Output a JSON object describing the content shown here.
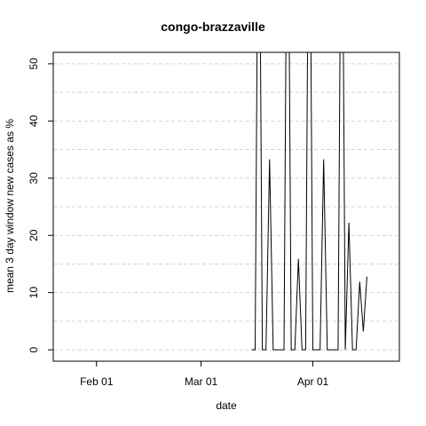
{
  "chart_data": {
    "type": "line",
    "title": "congo-brazzaville",
    "xlabel": "date",
    "ylabel": "mean  3  day window new cases as %",
    "x_ticks": [
      "Feb 01",
      "Mar 01",
      "Apr 01"
    ],
    "x_tick_dates": [
      "2020-02-01",
      "2020-03-01",
      "2020-04-01"
    ],
    "y_ticks": [
      0,
      10,
      20,
      30,
      40,
      50
    ],
    "xlim": [
      "2020-01-20",
      "2020-04-25"
    ],
    "ylim": [
      -2,
      52
    ],
    "grid": "horizontal dashed",
    "series": [
      {
        "x": [
          "2020-03-15",
          "2020-03-16",
          "2020-03-17",
          "2020-03-18",
          "2020-03-19",
          "2020-03-20",
          "2020-03-21",
          "2020-03-22",
          "2020-03-23",
          "2020-03-24",
          "2020-03-25",
          "2020-03-26",
          "2020-03-27",
          "2020-03-28",
          "2020-03-29",
          "2020-03-30",
          "2020-03-31",
          "2020-04-01",
          "2020-04-02",
          "2020-04-03",
          "2020-04-04",
          "2020-04-05",
          "2020-04-06",
          "2020-04-07",
          "2020-04-08",
          "2020-04-09",
          "2020-04-10",
          "2020-04-11",
          "2020-04-12",
          "2020-04-13",
          "2020-04-14",
          "2020-04-15",
          "2020-04-16",
          "2020-04-17",
          "2020-04-18",
          "2020-04-19",
          "2020-04-20",
          "2020-04-21"
        ],
        "y": [
          0,
          0,
          100,
          0,
          0,
          33.3,
          0,
          0,
          0,
          0,
          100,
          0,
          0,
          15.9,
          0,
          0,
          100,
          0,
          0,
          0,
          33.3,
          0,
          0,
          0,
          0,
          100,
          0,
          22.2,
          0,
          0,
          11.9,
          3.2,
          12.8,
          null,
          null,
          null,
          null,
          null
        ]
      }
    ]
  }
}
